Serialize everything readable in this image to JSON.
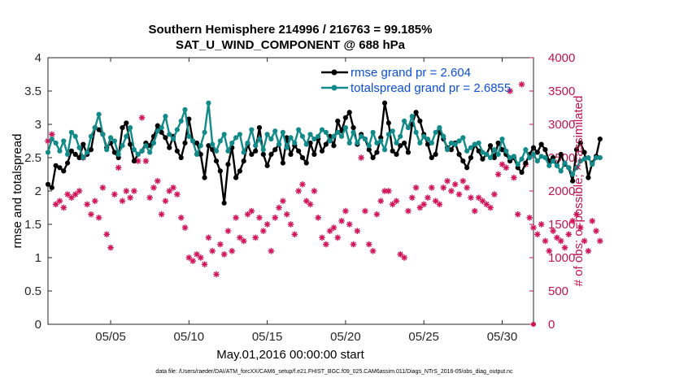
{
  "chart_data": {
    "type": "line",
    "title": [
      "Southern Hemisphere 214996 / 216763 = 99.185%",
      "SAT_U_WIND_COMPONENT @ 688 hPa"
    ],
    "xlabel": "May.01,2016 00:00:00 start",
    "ylabel_left": "rmse and totalspread",
    "ylabel_right": "# of obs: o=possible; ×=assimilated",
    "footnote": "data file: /Users/raeder/DAI/ATM_forcXX/CAM6_setup/f.e21.FHIST_BGC.f09_025.CAM6assim.011/Diags_NTrS_2016-05/obs_diag_output.nc",
    "xlim": [
      1.0,
      32.0
    ],
    "ylim_left": [
      0,
      4
    ],
    "ylim_right": [
      0,
      4000
    ],
    "x_ticks": [
      5,
      10,
      15,
      20,
      25,
      30
    ],
    "x_tick_labels": [
      "05/05",
      "05/10",
      "05/15",
      "05/20",
      "05/25",
      "05/30"
    ],
    "y_ticks_left": [
      0,
      0.5,
      1,
      1.5,
      2,
      2.5,
      3,
      3.5,
      4
    ],
    "y_tick_labels_left": [
      "0",
      "0.5",
      "1",
      "1.5",
      "2",
      "2.5",
      "3",
      "3.5",
      "4"
    ],
    "y_ticks_right": [
      0,
      500,
      1000,
      1500,
      2000,
      2500,
      3000,
      3500,
      4000
    ],
    "y_tick_labels_right": [
      "0",
      "500",
      "1000",
      "1500",
      "2000",
      "2500",
      "3000",
      "3500",
      "4000"
    ],
    "x_start": 1.0,
    "x_step": 0.25,
    "series": [
      {
        "name": "rmse grand pr = 2.604",
        "color": "#000000",
        "axis": "left",
        "values": [
          2.1,
          2.05,
          2.38,
          2.35,
          2.3,
          2.42,
          2.6,
          2.55,
          2.5,
          2.7,
          2.55,
          2.62,
          2.95,
          2.92,
          2.85,
          2.65,
          2.72,
          2.58,
          2.5,
          2.95,
          3.02,
          2.7,
          2.45,
          2.55,
          2.6,
          2.72,
          2.68,
          2.82,
          2.98,
          2.88,
          2.8,
          2.65,
          2.82,
          2.6,
          2.5,
          2.72,
          3.08,
          2.75,
          2.72,
          2.55,
          2.2,
          2.68,
          2.62,
          2.45,
          2.3,
          1.82,
          2.4,
          2.65,
          2.2,
          2.3,
          2.45,
          2.7,
          2.55,
          2.6,
          2.95,
          2.55,
          2.38,
          2.55,
          2.62,
          2.7,
          2.42,
          2.8,
          2.55,
          2.68,
          2.6,
          2.5,
          2.42,
          2.72,
          2.55,
          2.78,
          2.6,
          2.7,
          2.82,
          2.68,
          3.05,
          2.9,
          3.1,
          3.18,
          2.95,
          2.7,
          2.85,
          2.78,
          2.62,
          2.5,
          2.58,
          2.8,
          3.32,
          3.02,
          2.6,
          2.55,
          2.68,
          2.72,
          2.58,
          3.0,
          3.18,
          3.05,
          2.85,
          2.7,
          2.5,
          2.55,
          2.9,
          2.78,
          2.65,
          2.62,
          2.72,
          2.55,
          2.45,
          2.35,
          2.5,
          2.7,
          2.6,
          2.48,
          2.55,
          2.68,
          2.5,
          2.72,
          2.62,
          2.55,
          2.45,
          2.5,
          2.35,
          2.28,
          2.42,
          2.55,
          2.65,
          2.58,
          2.7,
          2.62,
          2.45,
          2.5,
          2.38,
          2.55,
          2.4,
          2.35,
          2.15,
          2.62,
          2.72,
          2.58,
          2.2,
          2.42,
          2.52,
          2.78
        ],
        "marker": "dot"
      },
      {
        "name": "totalspread grand pr = 2.6855",
        "color": "#138a8a",
        "axis": "left",
        "values": [
          2.58,
          2.78,
          2.72,
          2.6,
          2.75,
          2.55,
          2.88,
          2.82,
          2.65,
          2.5,
          2.58,
          2.82,
          2.95,
          3.15,
          2.85,
          2.62,
          2.8,
          2.75,
          2.55,
          2.68,
          2.82,
          2.95,
          2.62,
          2.55,
          2.6,
          2.68,
          2.58,
          2.72,
          2.9,
          2.95,
          3.12,
          2.85,
          2.78,
          2.92,
          3.05,
          3.22,
          2.82,
          2.75,
          2.55,
          2.68,
          2.88,
          3.32,
          2.7,
          2.6,
          2.75,
          2.85,
          2.6,
          2.72,
          2.8,
          2.85,
          2.58,
          2.72,
          2.92,
          2.68,
          2.78,
          2.62,
          2.85,
          2.78,
          2.9,
          2.7,
          2.88,
          2.65,
          2.8,
          2.72,
          2.92,
          2.82,
          2.7,
          2.85,
          2.78,
          2.82,
          2.92,
          2.88,
          2.75,
          2.82,
          2.88,
          2.82,
          2.95,
          2.72,
          2.88,
          2.72,
          2.82,
          2.78,
          2.68,
          2.88,
          2.72,
          2.75,
          2.62,
          2.85,
          2.9,
          2.72,
          2.82,
          3.05,
          2.95,
          3.12,
          2.88,
          2.72,
          2.82,
          2.78,
          2.72,
          2.88,
          2.95,
          2.82,
          2.62,
          2.72,
          2.7,
          2.75,
          2.8,
          2.6,
          2.65,
          2.7,
          2.72,
          2.58,
          2.55,
          2.5,
          2.62,
          2.55,
          2.78,
          2.6,
          2.5,
          2.52,
          2.4,
          2.48,
          2.62,
          2.5,
          2.55,
          2.45,
          2.52,
          2.5,
          2.38,
          2.45,
          2.38,
          2.3,
          2.42,
          2.35,
          2.25,
          2.35,
          2.45,
          2.48,
          2.5,
          2.4,
          2.5,
          2.5
        ],
        "marker": "dot"
      },
      {
        "name": "obs assimilated",
        "color": "#d1145a",
        "axis": "right",
        "marker": "asterisk",
        "values": [
          2750,
          2850,
          1800,
          1850,
          1750,
          1950,
          1900,
          1950,
          2000,
          2500,
          1800,
          1650,
          1850,
          1600,
          2050,
          1350,
          1150,
          1950,
          2350,
          1850,
          2000,
          1900,
          2000,
          2450,
          3100,
          2450,
          1900,
          2050,
          2150,
          1650,
          1850,
          2000,
          2050,
          1950,
          1600,
          1450,
          1000,
          950,
          1050,
          1000,
          900,
          1300,
          1100,
          750,
          1200,
          1050,
          1400,
          1100,
          1600,
          1300,
          1250,
          1650,
          1700,
          1300,
          1600,
          1400,
          1500,
          1100,
          1600,
          1750,
          1850,
          1650,
          1500,
          1350,
          2000,
          2100,
          1850,
          1800,
          2000,
          1600,
          1300,
          1200,
          1400,
          1450,
          1300,
          1550,
          1700,
          1500,
          1200,
          1400,
          2500,
          1700,
          1200,
          1100,
          1650,
          1850,
          2000,
          2000,
          1800,
          1850,
          1050,
          1000,
          1700,
          1900,
          2050,
          1750,
          1800,
          1900,
          2050,
          1850,
          1800,
          2050,
          2150,
          2000,
          2100,
          1950,
          2150,
          2050,
          1900,
          1700,
          1900,
          1850,
          1800,
          1750,
          1950,
          2250,
          2400,
          2350,
          3500,
          2200,
          1650,
          3600,
          2400,
          1600,
          1450,
          1350,
          1500,
          1250,
          1100,
          1400,
          1300,
          1250,
          1150,
          1350,
          1550,
          1650,
          1450,
          1250,
          1100,
          1550,
          1400,
          1250
        ]
      }
    ],
    "legend": [
      {
        "label": "rmse grand pr = 2.604",
        "color": "#000000"
      },
      {
        "label": "totalspread grand pr = 2.6855",
        "color": "#138a8a"
      }
    ]
  }
}
